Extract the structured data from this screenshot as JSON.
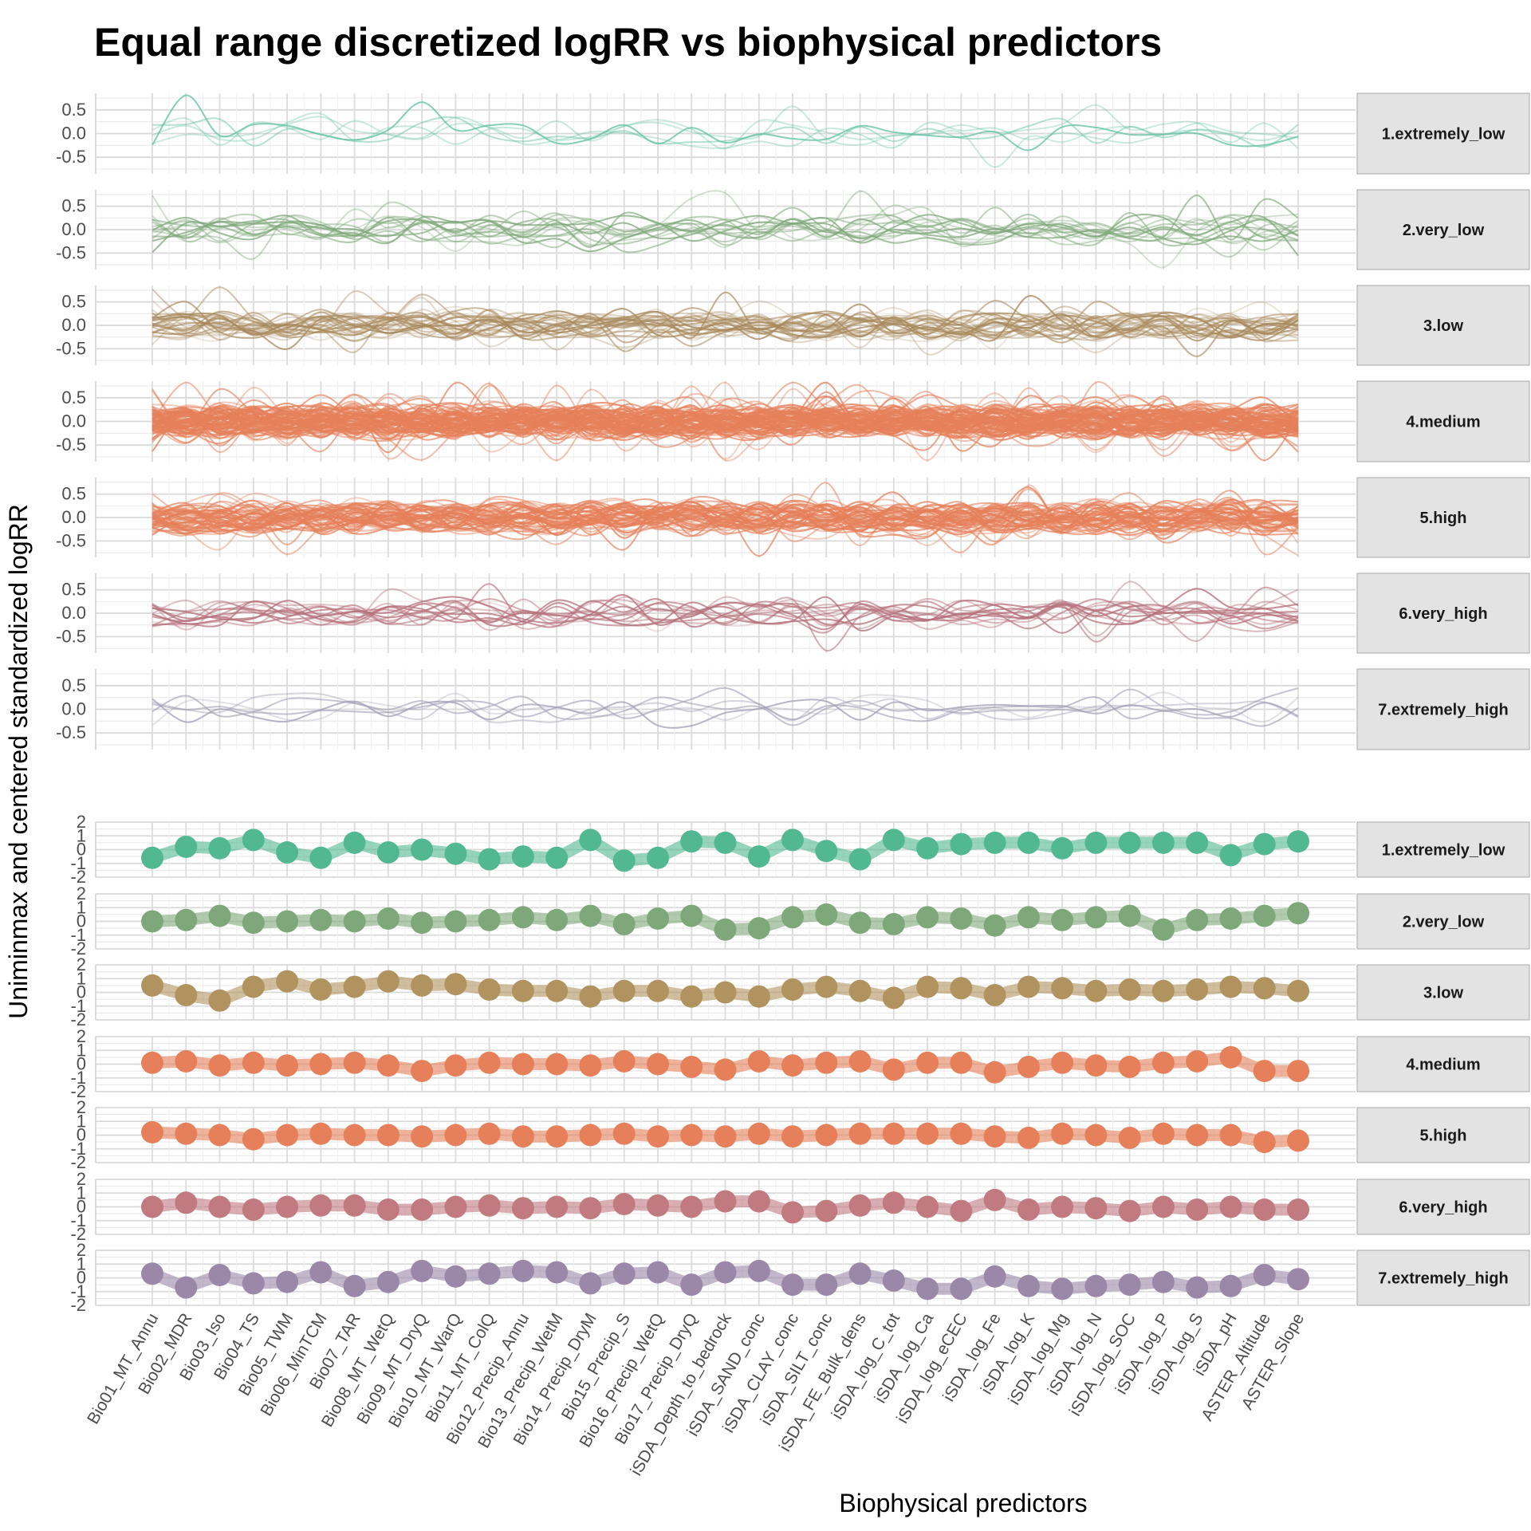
{
  "chart_data": {
    "type": "line",
    "title": "Equal range discretized logRR vs biophysical predictors",
    "xlabel": "Biophysical predictors",
    "ylabel": "Uniminmax and centered standardized logRR",
    "categories": [
      "Bio01_MT_Annu",
      "Bio02_MDR",
      "Bio03_Iso",
      "Bio04_TS",
      "Bio05_TWM",
      "Bio06_MinTCM",
      "Bio07_TAR",
      "Bio08_MT_WetQ",
      "Bio09_MT_DryQ",
      "Bio10_MT_WarQ",
      "Bio11_MT_ColQ",
      "Bio12_Precip_Annu",
      "Bio13_Precip_WetM",
      "Bio14_Precip_DryM",
      "Bio15_Precip_S",
      "Bio16_Precip_WetQ",
      "Bio17_Precip_DryQ",
      "iSDA_Depth_to_bedrock",
      "iSDA_SAND_conc",
      "iSDA_CLAY_conc",
      "iSDA_SILT_conc",
      "iSDA_FE_Bulk_dens",
      "iSDA_log_C_tot",
      "iSDA_log_Ca",
      "iSDA_log_eCEC",
      "iSDA_log_Fe",
      "iSDA_log_K",
      "iSDA_log_Mg",
      "iSDA_log_N",
      "iSDA_log_SOC",
      "iSDA_log_P",
      "iSDA_log_S",
      "iSDA_pH",
      "ASTER_Altitude",
      "ASTER_Slope"
    ],
    "grid": true,
    "legend": "none",
    "top_section": {
      "type": "line",
      "description_of_marks": "individual-observation lines",
      "ylim": [
        -0.85,
        0.85
      ],
      "yticks": [
        "0.5",
        "0.0",
        "-0.5"
      ],
      "facets": [
        {
          "label": "1.extremely_low",
          "color": "#66c2a5",
          "n_lines": 5
        },
        {
          "label": "2.very_low",
          "color": "#7fa87a",
          "n_lines": 14
        },
        {
          "label": "3.low",
          "color": "#a8895c",
          "n_lines": 30
        },
        {
          "label": "4.medium",
          "color": "#e5805a",
          "n_lines": 90
        },
        {
          "label": "5.high",
          "color": "#e5805a",
          "n_lines": 55
        },
        {
          "label": "6.very_high",
          "color": "#b5707a",
          "n_lines": 14
        },
        {
          "label": "7.extremely_high",
          "color": "#a19db5",
          "n_lines": 5
        }
      ]
    },
    "bottom_section": {
      "type": "line",
      "ylim": [
        -2,
        2
      ],
      "yticks": [
        "2",
        "1",
        "0",
        "-1",
        "-2"
      ],
      "series": [
        {
          "name": "1.extremely_low",
          "color": "#52b892",
          "values": [
            -0.6,
            0.2,
            0.1,
            0.7,
            -0.2,
            -0.6,
            0.5,
            -0.2,
            0.0,
            -0.3,
            -0.7,
            -0.5,
            -0.6,
            0.7,
            -0.8,
            -0.6,
            0.6,
            0.5,
            -0.5,
            0.7,
            -0.1,
            -0.7,
            0.7,
            0.1,
            0.4,
            0.5,
            0.5,
            0.1,
            0.5,
            0.5,
            0.5,
            0.5,
            -0.4,
            0.4,
            0.6
          ]
        },
        {
          "name": "2.very_low",
          "color": "#7fa87a",
          "values": [
            0.0,
            0.1,
            0.4,
            -0.1,
            0.0,
            0.1,
            0.0,
            0.2,
            -0.1,
            0.0,
            0.1,
            0.3,
            0.1,
            0.4,
            -0.2,
            0.2,
            0.4,
            -0.6,
            -0.5,
            0.3,
            0.5,
            -0.1,
            -0.2,
            0.3,
            0.2,
            -0.3,
            0.3,
            0.1,
            0.3,
            0.4,
            -0.6,
            0.1,
            0.2,
            0.4,
            0.6
          ]
        },
        {
          "name": "3.low",
          "color": "#b0935f",
          "values": [
            0.5,
            -0.2,
            -0.6,
            0.4,
            0.8,
            0.2,
            0.4,
            0.8,
            0.5,
            0.6,
            0.2,
            0.1,
            0.1,
            -0.3,
            0.1,
            0.1,
            -0.3,
            0.0,
            -0.3,
            0.2,
            0.4,
            0.1,
            -0.4,
            0.4,
            0.3,
            -0.2,
            0.4,
            0.3,
            0.1,
            0.2,
            0.1,
            0.2,
            0.4,
            0.3,
            0.1
          ]
        },
        {
          "name": "4.medium",
          "color": "#e5805a",
          "values": [
            0.1,
            0.2,
            -0.1,
            0.1,
            -0.1,
            0.0,
            0.1,
            -0.1,
            -0.5,
            -0.1,
            0.1,
            0.0,
            0.0,
            -0.1,
            0.2,
            0.0,
            -0.2,
            -0.4,
            0.2,
            -0.1,
            0.1,
            0.2,
            -0.4,
            0.1,
            0.1,
            -0.6,
            -0.2,
            0.1,
            -0.1,
            -0.2,
            0.1,
            0.2,
            0.5,
            -0.5,
            -0.5
          ]
        },
        {
          "name": "5.high",
          "color": "#e5805a",
          "values": [
            0.2,
            0.1,
            0.0,
            -0.3,
            0.0,
            0.1,
            0.0,
            0.0,
            -0.1,
            0.0,
            0.1,
            -0.1,
            -0.1,
            0.0,
            0.1,
            -0.1,
            0.0,
            -0.1,
            0.1,
            -0.1,
            0.0,
            0.1,
            0.1,
            0.1,
            0.1,
            -0.1,
            -0.2,
            0.1,
            0.0,
            -0.2,
            0.1,
            0.0,
            0.0,
            -0.5,
            -0.4
          ]
        },
        {
          "name": "6.very_high",
          "color": "#c07a80",
          "values": [
            0.0,
            0.3,
            0.0,
            -0.2,
            0.0,
            0.1,
            0.1,
            -0.2,
            -0.2,
            0.0,
            0.1,
            -0.1,
            0.0,
            -0.1,
            0.2,
            0.1,
            0.0,
            0.4,
            0.4,
            -0.4,
            -0.3,
            0.1,
            0.3,
            0.0,
            -0.3,
            0.5,
            -0.2,
            0.0,
            -0.1,
            -0.3,
            0.0,
            -0.2,
            0.0,
            -0.2,
            -0.2
          ]
        },
        {
          "name": "7.extremely_high",
          "color": "#9b88a8",
          "values": [
            0.3,
            -0.7,
            0.2,
            -0.4,
            -0.3,
            0.4,
            -0.6,
            -0.3,
            0.5,
            0.1,
            0.3,
            0.5,
            0.4,
            -0.4,
            0.3,
            0.4,
            -0.5,
            0.4,
            0.5,
            -0.5,
            -0.5,
            0.3,
            -0.2,
            -0.8,
            -0.8,
            0.1,
            -0.6,
            -0.8,
            -0.6,
            -0.5,
            -0.3,
            -0.7,
            -0.6,
            0.2,
            -0.1
          ]
        }
      ]
    }
  }
}
